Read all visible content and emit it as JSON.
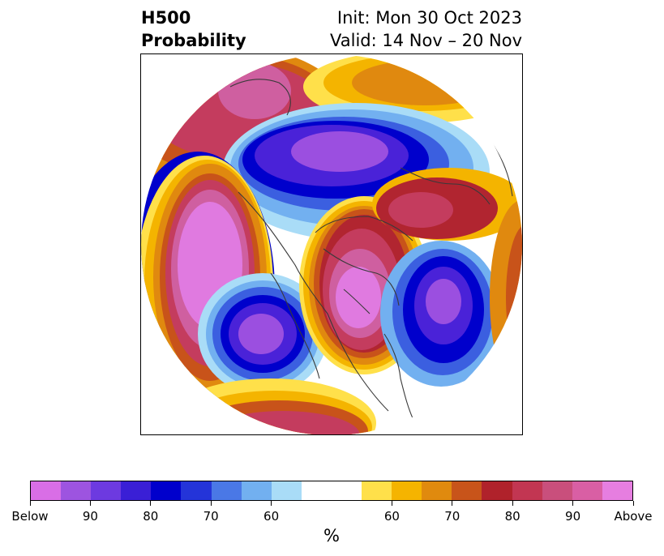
{
  "title": {
    "left_line1": "H500",
    "left_line2": "Probability",
    "right_line1": "Init: Mon 30 Oct 2023",
    "right_line2": "Valid: 14 Nov – 20 Nov"
  },
  "colorbar": {
    "unit": "%",
    "colors": [
      "#d96ee6",
      "#9d54e0",
      "#6d3ae0",
      "#3a1fd6",
      "#0000cc",
      "#2434d9",
      "#4a78e6",
      "#72b0f0",
      "#a9dcf7",
      "#ffffff",
      "#ffe04a",
      "#f5b400",
      "#e08a0e",
      "#c8541a",
      "#b0222b",
      "#c23652",
      "#c94f7c",
      "#d95fa4",
      "#e67ee0"
    ],
    "tick_labels": [
      "Below",
      "90",
      "80",
      "70",
      "60",
      "60",
      "70",
      "80",
      "90",
      "Above"
    ]
  },
  "map": {
    "projection": "north polar stereographic",
    "colors": {
      "magenta": "#e07ae0",
      "pink": "#cf5fa0",
      "rose": "#c43c5e",
      "crimson": "#b12530",
      "rust": "#c8531a",
      "orange": "#e0890f",
      "gold": "#f4b400",
      "yellow": "#ffe04a",
      "lightblue": "#a9dcf7",
      "skyblue": "#72b0f0",
      "blue": "#3b5fe0",
      "navy": "#0000cc",
      "indigo": "#4a22d8",
      "violet": "#9b4fe0",
      "border": "#3a3a3a"
    }
  }
}
